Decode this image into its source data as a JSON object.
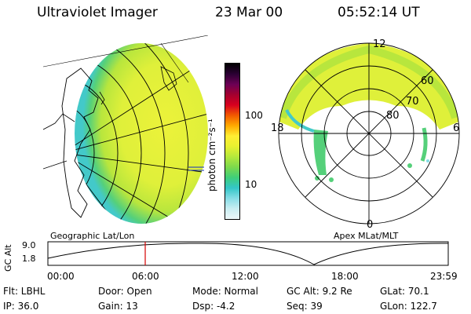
{
  "header": {
    "instrument": "Ultraviolet Imager",
    "date": "23 Mar 00",
    "time": "05:52:14 UT"
  },
  "colorbar": {
    "unit_label": "photon cm⁻²s⁻¹",
    "tick_100": "100",
    "tick_10": "10",
    "colors": [
      "#000000",
      "#2a0033",
      "#6b0055",
      "#a4002f",
      "#d8001f",
      "#f25a00",
      "#ffaa00",
      "#ffee33",
      "#e8f030",
      "#b4e83c",
      "#7cd94c",
      "#3fcf7a",
      "#34c6c8",
      "#86dde6",
      "#c9eef2",
      "#eef8fa"
    ]
  },
  "geo_panel": {
    "label": "Geographic Lat/Lon",
    "aurora_colors": {
      "bright": "#ecf23a",
      "mid": "#b8e63d",
      "low": "#55d07a",
      "edge": "#43c9c9"
    }
  },
  "polar_panel": {
    "label": "Apex MLat/MLT",
    "mlt_labels": {
      "top": "12",
      "left": "18",
      "right": "6",
      "bottom": "0"
    },
    "lat_labels": [
      "60",
      "70",
      "80"
    ]
  },
  "altitude_plot": {
    "ylabel": "GC Alt",
    "yticks": [
      "9.0",
      "1.8"
    ],
    "xticks": [
      "00:00",
      "06:00",
      "12:00",
      "18:00",
      "23:59"
    ],
    "marker_color": "#d40000"
  },
  "status": {
    "flt": "Flt: LBHL",
    "ip": "IP: 36.0",
    "door": "Door: Open",
    "gain": "Gain: 13",
    "mode": "Mode: Normal",
    "dsp": "Dsp:    -4.2",
    "gcalt": "GC Alt: 9.2 Re",
    "seq": "Seq: 39",
    "glat": "GLat:  70.1",
    "glon": "GLon: 122.7"
  }
}
